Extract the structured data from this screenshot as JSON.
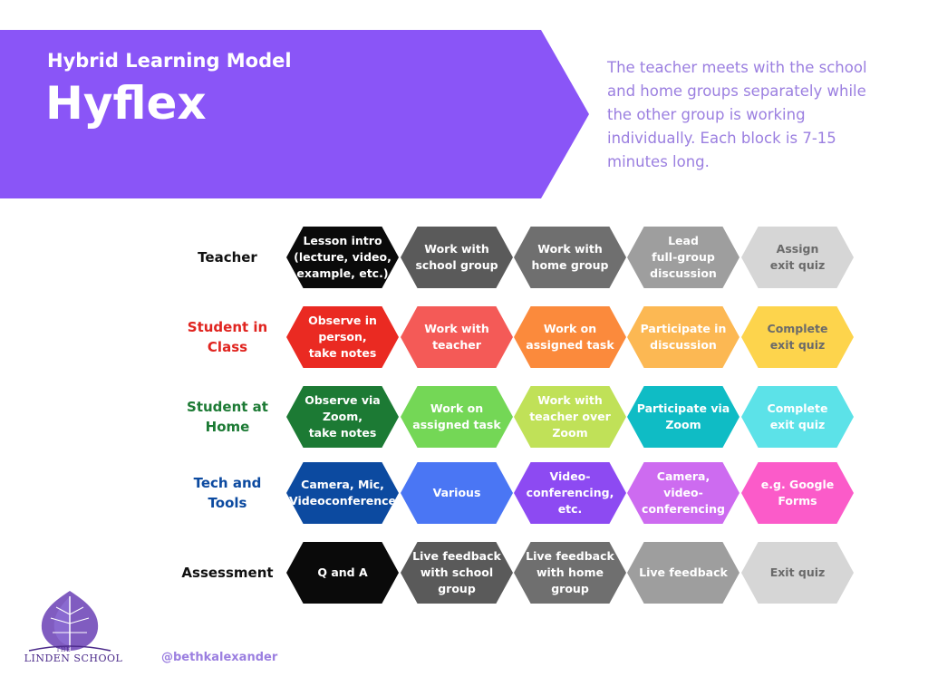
{
  "header": {
    "subtitle": "Hybrid Learning Model",
    "title": "Hyflex",
    "description": "The teacher meets with the school and home groups separately while the other group is working individually. Each block is 7-15 minutes long."
  },
  "colors": {
    "banner": "#8a55f7",
    "description_text": "#9b7fe0"
  },
  "rows": [
    {
      "label": "Teacher",
      "label_color": "#111111",
      "cells": [
        {
          "text": "Lesson intro\n(lecture, video,\nexample, etc.)",
          "bg": "#0a0a0a",
          "fg": "#ffffff"
        },
        {
          "text": "Work with\nschool group",
          "bg": "#5a5a5a",
          "fg": "#ffffff"
        },
        {
          "text": "Work with\nhome group",
          "bg": "#6f6f6f",
          "fg": "#ffffff"
        },
        {
          "text": "Lead\nfull-group\ndiscussion",
          "bg": "#9e9e9e",
          "fg": "#ffffff"
        },
        {
          "text": "Assign\nexit quiz",
          "bg": "#d6d6d6",
          "fg": "#6a6a6a"
        }
      ]
    },
    {
      "label": "Student in\nClass",
      "label_color": "#e0241f",
      "cells": [
        {
          "text": "Observe in\nperson,\ntake notes",
          "bg": "#ea2a22",
          "fg": "#ffffff"
        },
        {
          "text": "Work with\nteacher",
          "bg": "#f45a57",
          "fg": "#ffffff"
        },
        {
          "text": "Work on\nassigned task",
          "bg": "#fb8a3c",
          "fg": "#ffffff"
        },
        {
          "text": "Participate in\ndiscussion",
          "bg": "#fcb853",
          "fg": "#ffffff"
        },
        {
          "text": "Complete\nexit quiz",
          "bg": "#fdd44c",
          "fg": "#6a6a6a"
        }
      ]
    },
    {
      "label": "Student at\nHome",
      "label_color": "#1c7a34",
      "cells": [
        {
          "text": "Observe via\nZoom,\ntake notes",
          "bg": "#1c7a34",
          "fg": "#ffffff"
        },
        {
          "text": "Work on\nassigned task",
          "bg": "#74d756",
          "fg": "#ffffff"
        },
        {
          "text": "Work with\nteacher over\nZoom",
          "bg": "#c0e158",
          "fg": "#ffffff"
        },
        {
          "text": "Participate via\nZoom",
          "bg": "#0fbcc5",
          "fg": "#ffffff"
        },
        {
          "text": "Complete\nexit quiz",
          "bg": "#5ce2e8",
          "fg": "#ffffff"
        }
      ]
    },
    {
      "label": "Tech and\nTools",
      "label_color": "#0c4aa0",
      "cells": [
        {
          "text": "Camera, Mic,\nVideoconference",
          "bg": "#0c4aa0",
          "fg": "#ffffff"
        },
        {
          "text": "Various",
          "bg": "#4a76f4",
          "fg": "#ffffff"
        },
        {
          "text": "Video-\nconferencing,\netc.",
          "bg": "#8d4af2",
          "fg": "#ffffff"
        },
        {
          "text": "Camera,\nvideo-\nconferencing",
          "bg": "#cd6bf0",
          "fg": "#ffffff"
        },
        {
          "text": "e.g. Google\nForms",
          "bg": "#fb5bc9",
          "fg": "#ffffff"
        }
      ]
    },
    {
      "label": "Assessment",
      "label_color": "#111111",
      "cells": [
        {
          "text": "Q and A",
          "bg": "#0a0a0a",
          "fg": "#ffffff"
        },
        {
          "text": "Live feedback\nwith school\ngroup",
          "bg": "#5a5a5a",
          "fg": "#ffffff"
        },
        {
          "text": "Live feedback\nwith home\ngroup",
          "bg": "#6f6f6f",
          "fg": "#ffffff"
        },
        {
          "text": "Live feedback",
          "bg": "#9e9e9e",
          "fg": "#ffffff"
        },
        {
          "text": "Exit quiz",
          "bg": "#d6d6d6",
          "fg": "#6a6a6a"
        }
      ]
    }
  ],
  "footer": {
    "logo_small": "THE",
    "logo_name": "LINDEN SCHOOL",
    "logo_color": "#5c32a8",
    "handle": "@bethkalexander"
  }
}
